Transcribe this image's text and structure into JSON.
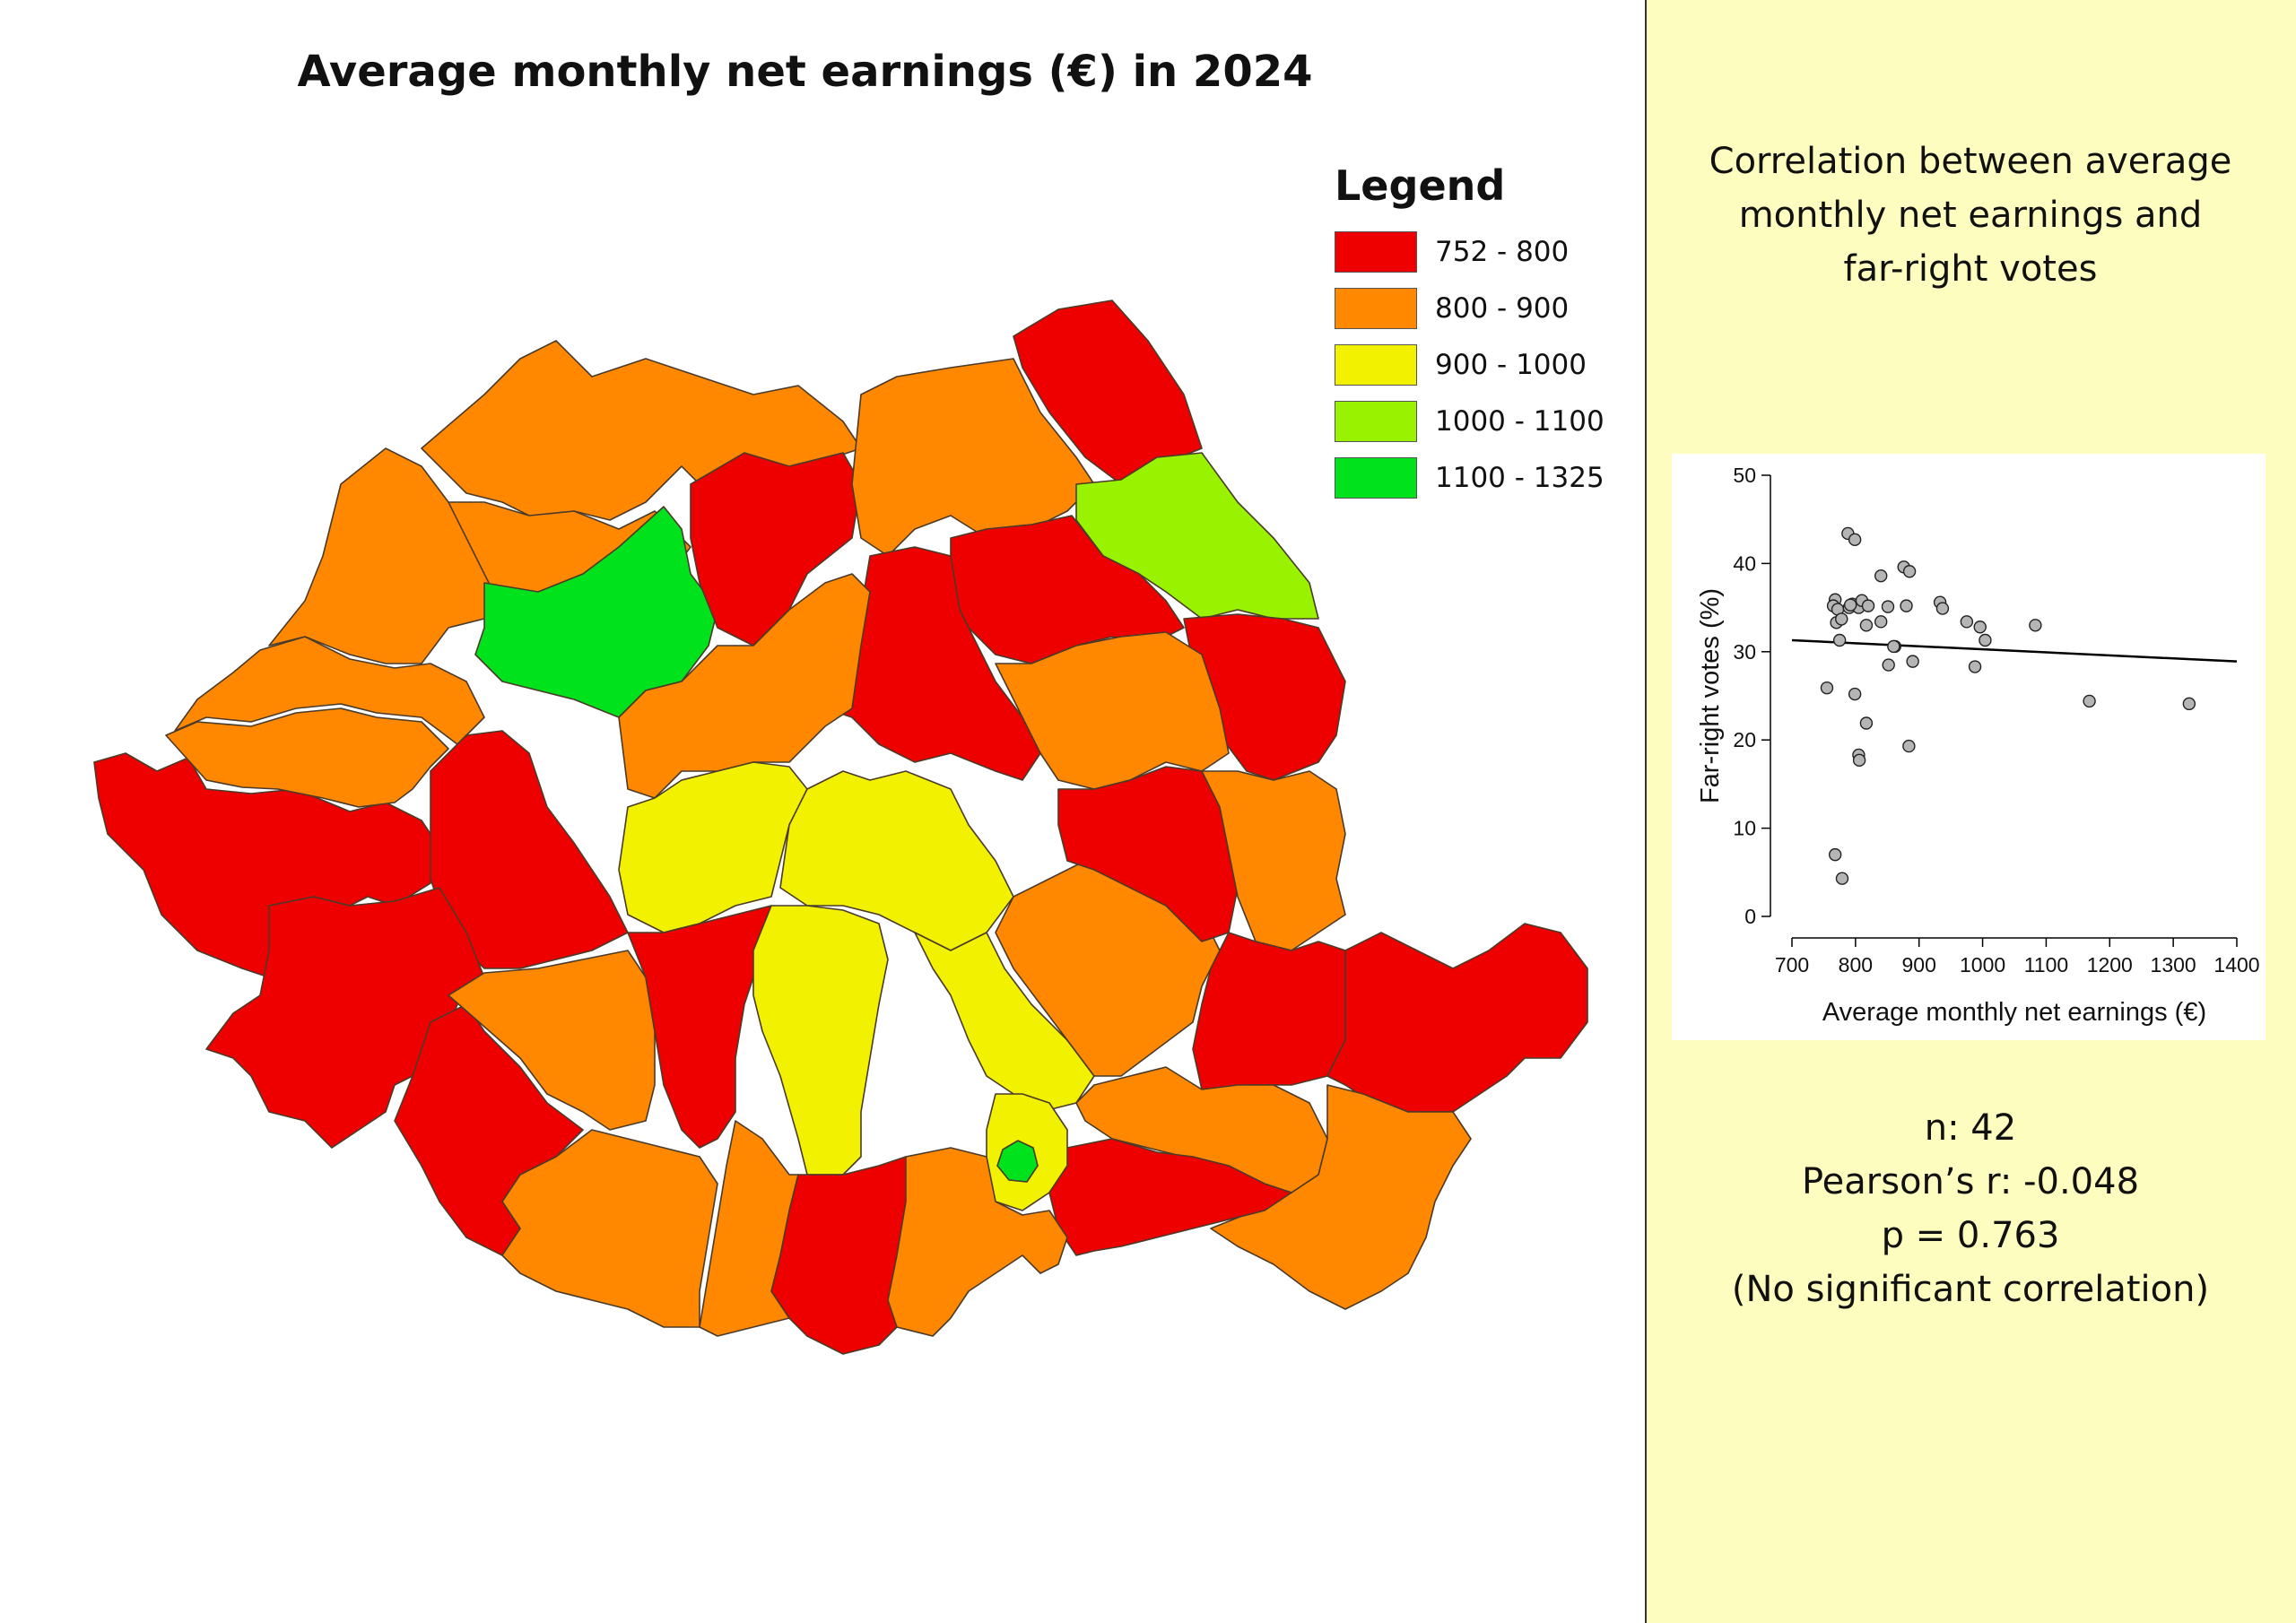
{
  "map": {
    "title": "Average monthly net earnings (€) in 2024"
  },
  "legend": {
    "title": "Legend",
    "items": [
      {
        "label": "752 - 800",
        "color": "#ee0000"
      },
      {
        "label": "800 - 900",
        "color": "#ff8800"
      },
      {
        "label": "900 - 1000",
        "color": "#f2f200"
      },
      {
        "label": "1000 - 1100",
        "color": "#99f200"
      },
      {
        "label": "1100 - 1325",
        "color": "#00e21b"
      }
    ]
  },
  "panel": {
    "title_lines": [
      "Correlation between average",
      "monthly net earnings and",
      "far-right votes"
    ],
    "stats": {
      "n": "n: 42",
      "r": "Pearson’s r: -0.048",
      "p": "p = 0.763",
      "note": "(No significant correlation)"
    }
  },
  "chart_data": {
    "type": "scatter",
    "title": "",
    "xlabel": "Average monthly net earnings (€)",
    "ylabel": "Far-right votes (%)",
    "xlim": [
      700,
      1400
    ],
    "ylim": [
      0,
      50
    ],
    "x_ticks": [
      700,
      800,
      900,
      1000,
      1100,
      1200,
      1300,
      1400
    ],
    "y_ticks": [
      0,
      10,
      20,
      30,
      40,
      50
    ],
    "trend_line": {
      "x": [
        700,
        1400
      ],
      "y": [
        31.3,
        28.9
      ]
    },
    "points": [
      {
        "x": 768,
        "y": 35.9
      },
      {
        "x": 765,
        "y": 35.2
      },
      {
        "x": 772,
        "y": 34.8
      },
      {
        "x": 770,
        "y": 33.3
      },
      {
        "x": 778,
        "y": 33.7
      },
      {
        "x": 775,
        "y": 31.3
      },
      {
        "x": 755,
        "y": 25.9
      },
      {
        "x": 768,
        "y": 7.0
      },
      {
        "x": 779,
        "y": 4.3
      },
      {
        "x": 788,
        "y": 43.4
      },
      {
        "x": 799,
        "y": 42.7
      },
      {
        "x": 790,
        "y": 35.0
      },
      {
        "x": 795,
        "y": 35.4
      },
      {
        "x": 805,
        "y": 35.0
      },
      {
        "x": 810,
        "y": 35.8
      },
      {
        "x": 820,
        "y": 35.2
      },
      {
        "x": 799,
        "y": 25.2
      },
      {
        "x": 817,
        "y": 33.0
      },
      {
        "x": 805,
        "y": 18.3
      },
      {
        "x": 806,
        "y": 17.7
      },
      {
        "x": 817,
        "y": 21.9
      },
      {
        "x": 840,
        "y": 38.6
      },
      {
        "x": 840,
        "y": 33.4
      },
      {
        "x": 851,
        "y": 35.1
      },
      {
        "x": 852,
        "y": 28.5
      },
      {
        "x": 862,
        "y": 30.6
      },
      {
        "x": 876,
        "y": 39.6
      },
      {
        "x": 885,
        "y": 39.1
      },
      {
        "x": 880,
        "y": 35.2
      },
      {
        "x": 890,
        "y": 28.9
      },
      {
        "x": 884,
        "y": 19.3
      },
      {
        "x": 933,
        "y": 35.6
      },
      {
        "x": 937,
        "y": 34.9
      },
      {
        "x": 975,
        "y": 33.4
      },
      {
        "x": 996,
        "y": 32.8
      },
      {
        "x": 1004,
        "y": 31.3
      },
      {
        "x": 988,
        "y": 28.3
      },
      {
        "x": 1083,
        "y": 33.0
      },
      {
        "x": 1168,
        "y": 24.4
      },
      {
        "x": 1325,
        "y": 24.1
      },
      {
        "x": 860,
        "y": 30.6
      },
      {
        "x": 792,
        "y": 35.3
      }
    ]
  }
}
